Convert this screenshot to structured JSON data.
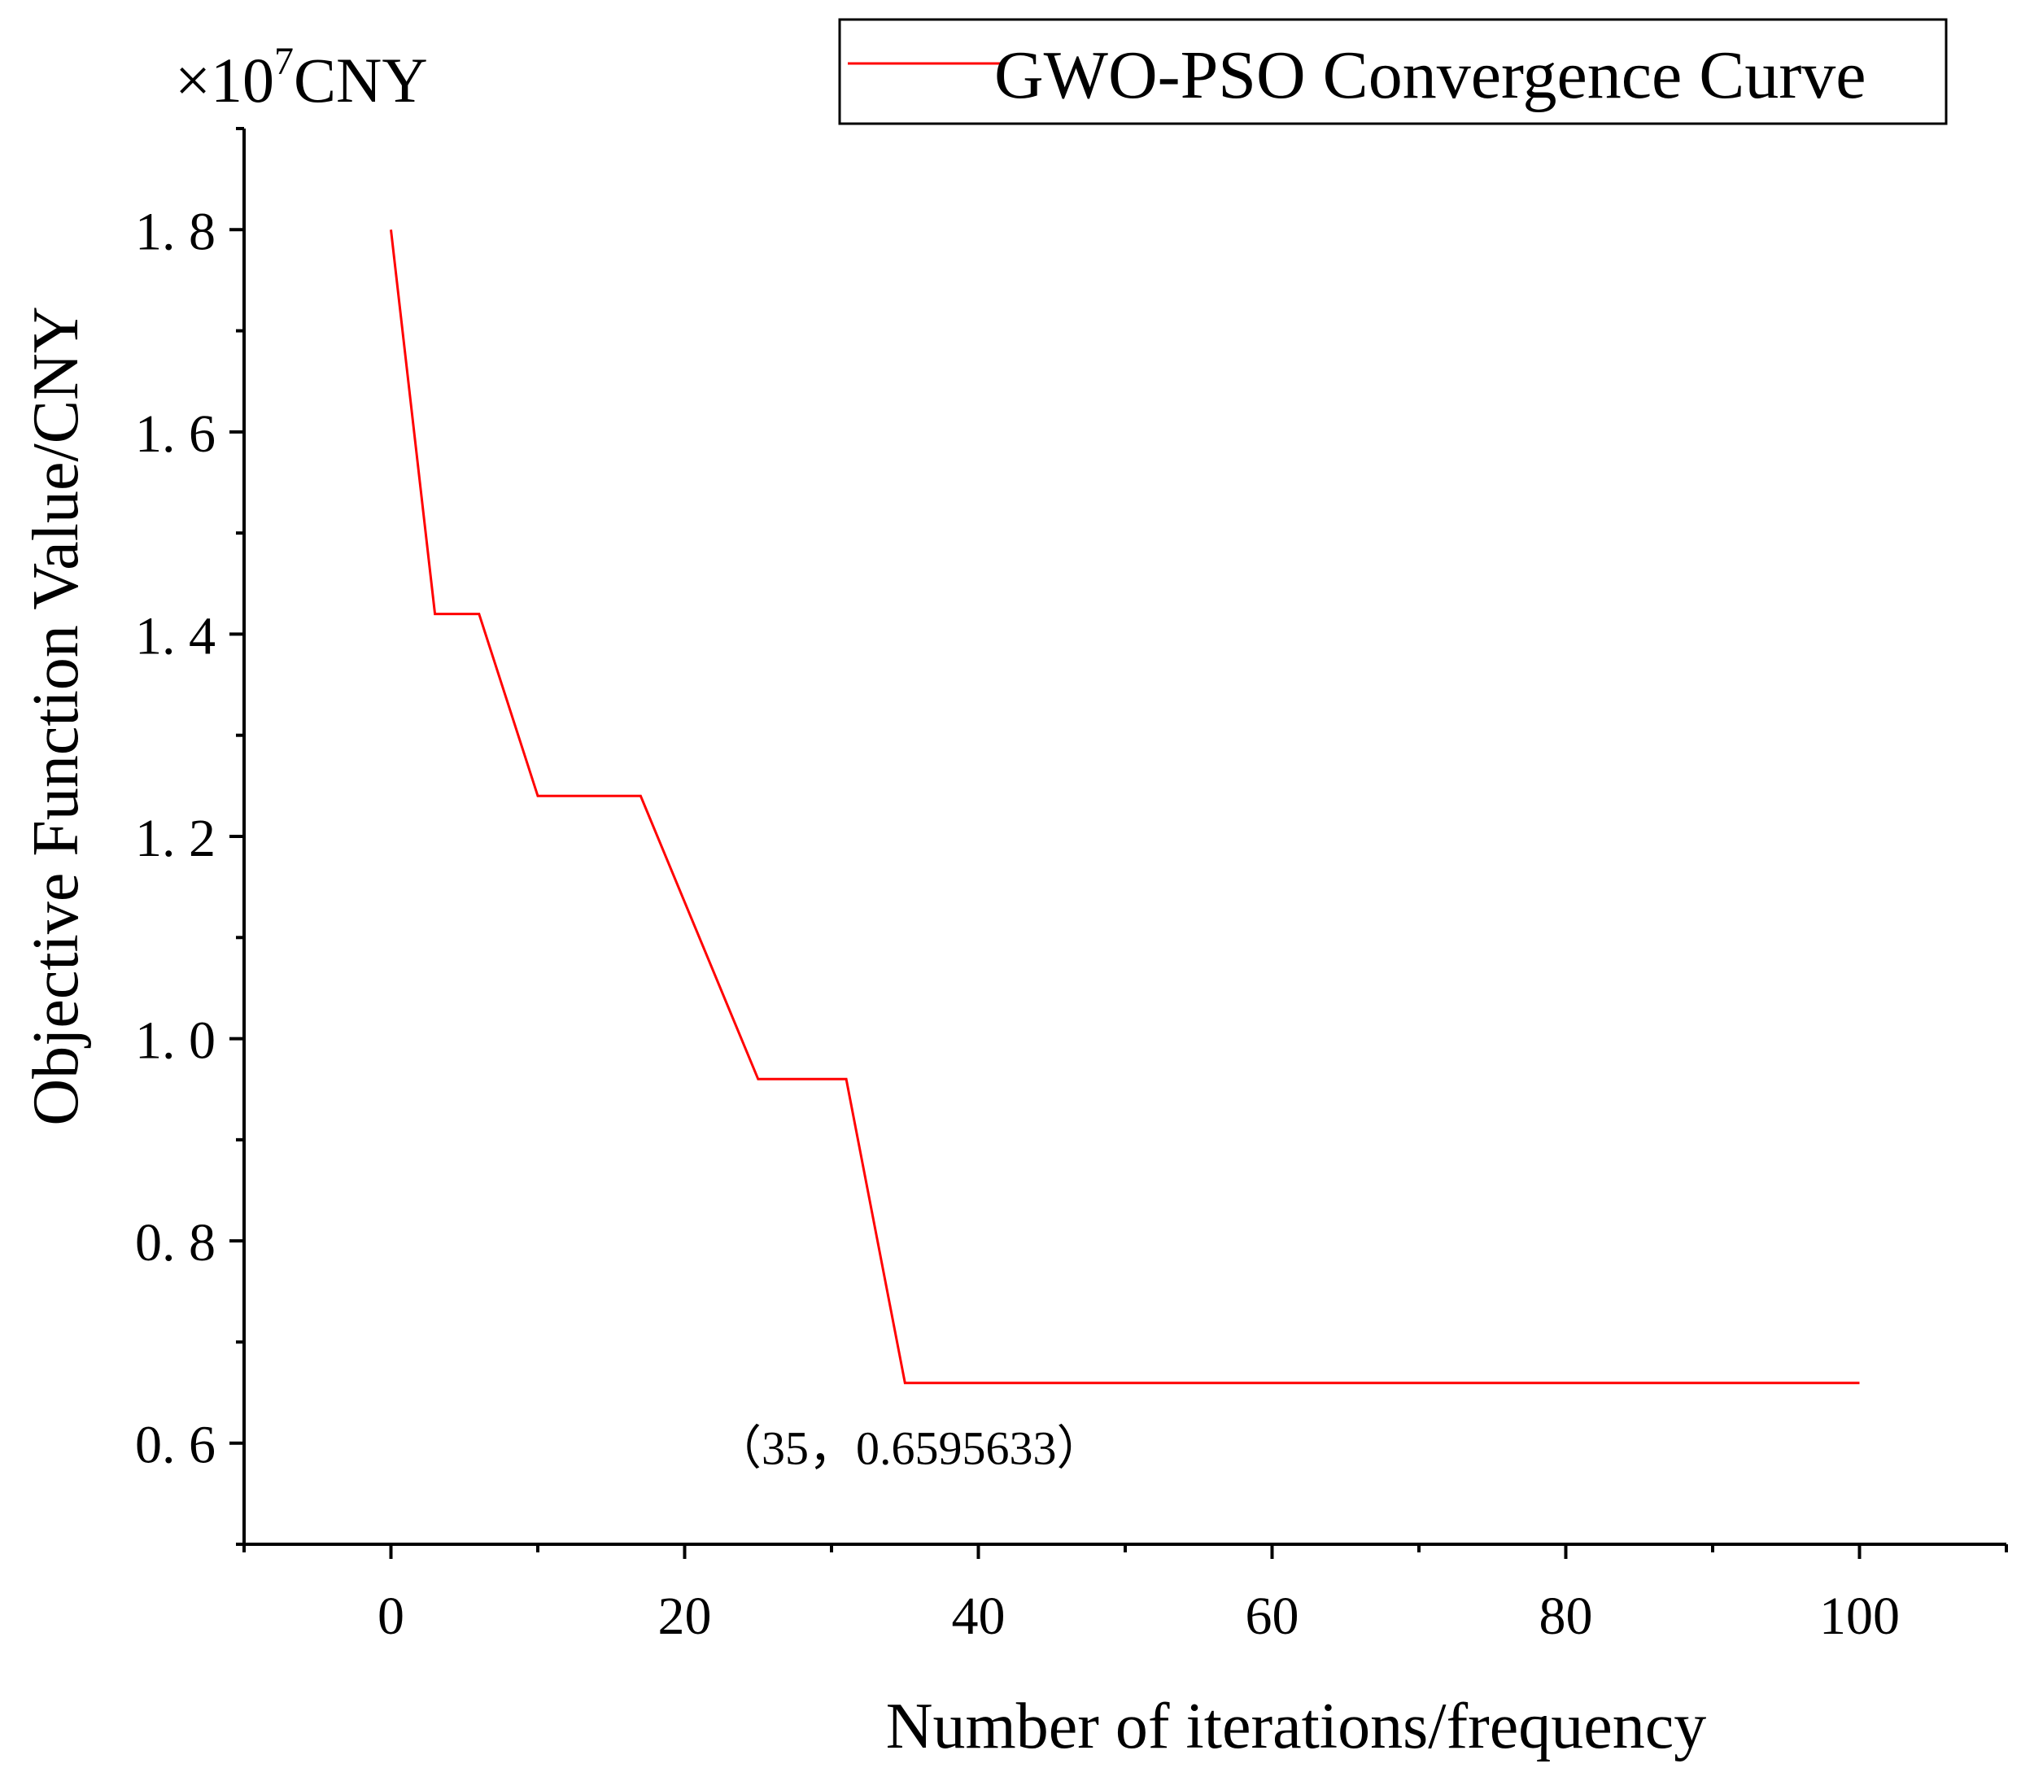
{
  "chart_data": {
    "type": "line",
    "title": "",
    "xlabel": "Number of iterations/frequency",
    "ylabel": "Objective Function Value/CNY",
    "y_multiplier": {
      "prefix": "×10",
      "exponent": "7",
      "unit": "CNY"
    },
    "xlim": [
      -10,
      110
    ],
    "ylim": [
      0.5,
      1.9
    ],
    "x_ticks": [
      0,
      20,
      40,
      60,
      80,
      100
    ],
    "x_tick_labels": [
      "0",
      "20",
      "40",
      "60",
      "80",
      "100"
    ],
    "x_minor_ticks": [
      -10,
      10,
      30,
      50,
      70,
      90,
      110
    ],
    "y_ticks": [
      0.6,
      0.8,
      1.0,
      1.2,
      1.4,
      1.6,
      1.8
    ],
    "y_tick_labels": [
      "0. 6",
      "0. 8",
      "1. 0",
      "1. 2",
      "1. 4",
      "1. 6",
      "1. 8"
    ],
    "y_minor_ticks": [
      0.5,
      0.7,
      0.9,
      1.1,
      1.3,
      1.5,
      1.7,
      1.9
    ],
    "grid": false,
    "legend_position": "top-right",
    "series": [
      {
        "name": "GWO-PSO Convergence Curve",
        "color": "#ff0000",
        "x": [
          0,
          3,
          6,
          10,
          17,
          25,
          31,
          35,
          100
        ],
        "y": [
          1.8,
          1.42,
          1.42,
          1.24,
          1.24,
          0.96,
          0.96,
          0.6595633,
          0.6595633
        ]
      }
    ],
    "annotations": [
      {
        "text": "（35，0.6595633）",
        "x": 35,
        "y": 0.6595633
      }
    ]
  }
}
